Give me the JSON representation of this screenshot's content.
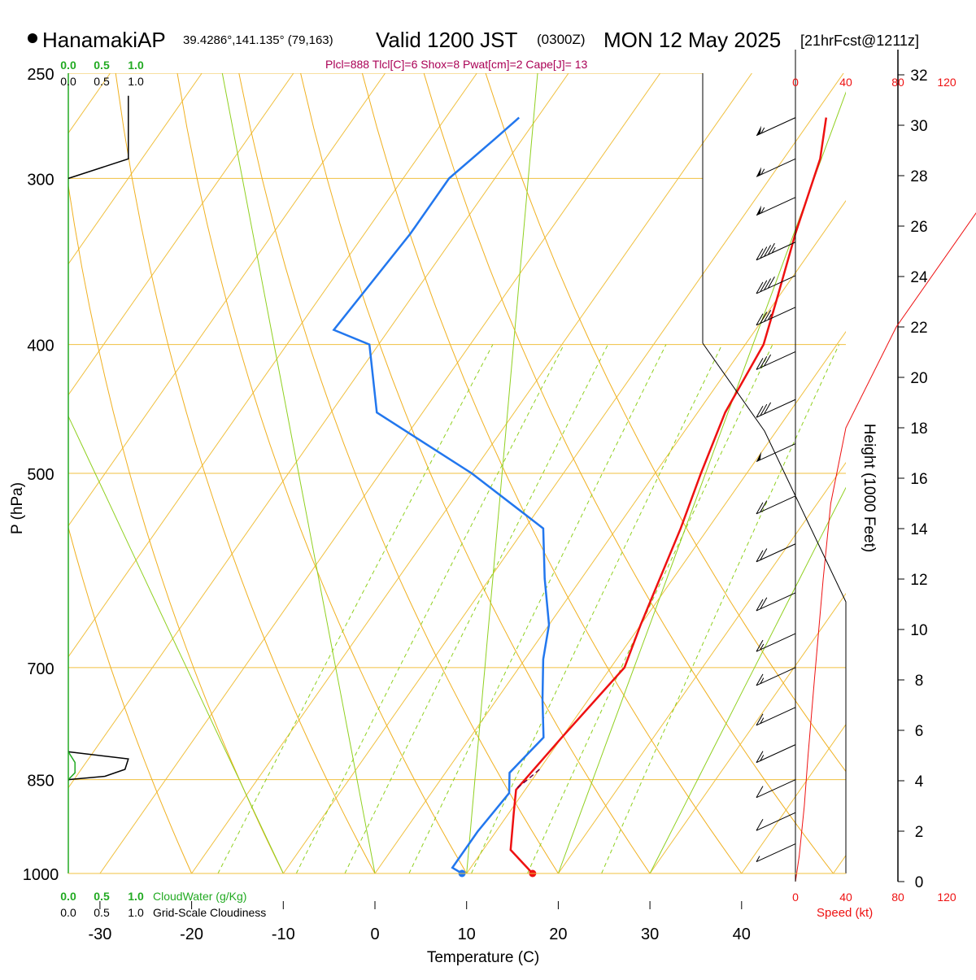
{
  "header": {
    "station": "HanamakiAP",
    "coords": "39.4286°,141.135° (79,163)",
    "valid": "Valid 1200 JST",
    "zulu": "(0300Z)",
    "date": "MON 12 May 2025",
    "forecast": "[21hrFcst@1211z]",
    "indices": "Plcl=888 Tlcl[C]=6 Shox=8 Pwat[cm]=2 Cape[J]= 13"
  },
  "colors": {
    "grid": "#f0c040",
    "dry_adiabat": "#f0b020",
    "moist_adiabat": "#90d020",
    "mixing_ratio": "#90d020",
    "temperature": "#ee1111",
    "dewpoint": "#2277ee",
    "cloud": "#22aa22",
    "speed": "#ee1111",
    "indices": "#aa0055"
  },
  "labels": {
    "x_axis": "Temperature (C)",
    "y_axis": "P (hPa)",
    "height_axis": "Height (1000 Feet)",
    "cloud_water": "CloudWater (g/Kg)",
    "cloudiness": "Grid-Scale Cloudiness",
    "speed": "Speed (kt)"
  },
  "scales": {
    "cloud_ticks": [
      "0.0",
      "0.5",
      "1.0"
    ],
    "cloudiness_ticks": [
      "0.0",
      "0.5",
      "1.0"
    ],
    "speed_ticks": [
      "0",
      "40",
      "80",
      "120"
    ]
  },
  "chart_data": {
    "type": "line",
    "title": "HanamakiAP Valid 1200 JST (0300Z) MON 12 May 2025",
    "xlabel": "Temperature (C)",
    "ylabel": "P (hPa)",
    "y_scale": "log",
    "ylim": [
      1000,
      250
    ],
    "xlim": [
      -33,
      36
    ],
    "x_ticks": [
      -30,
      -20,
      -10,
      0,
      10,
      20,
      30,
      40
    ],
    "p_levels": [
      250,
      300,
      400,
      500,
      700,
      850,
      1000
    ],
    "series": [
      {
        "name": "Temperature",
        "points": [
          [
            17.2,
            1000
          ],
          [
            13,
            960
          ],
          [
            10.5,
            900
          ],
          [
            9,
            865
          ],
          [
            10,
            790
          ],
          [
            11.5,
            700
          ],
          [
            10,
            650
          ],
          [
            7,
            550
          ],
          [
            5,
            500
          ],
          [
            3,
            450
          ],
          [
            2,
            400
          ],
          [
            0,
            370
          ],
          [
            -3,
            330
          ],
          [
            -6,
            290
          ],
          [
            -8.5,
            270
          ]
        ],
        "surface_marker": [
          17.2,
          1000
        ]
      },
      {
        "name": "Dewpoint",
        "points": [
          [
            9.5,
            1000
          ],
          [
            8,
            990
          ],
          [
            8,
            930
          ],
          [
            8.5,
            870
          ],
          [
            7,
            840
          ],
          [
            8,
            790
          ],
          [
            5,
            740
          ],
          [
            2,
            690
          ],
          [
            0,
            650
          ],
          [
            -4,
            600
          ],
          [
            -8,
            550
          ],
          [
            -20,
            500
          ],
          [
            -35,
            450
          ],
          [
            -41,
            400
          ],
          [
            -46,
            390
          ],
          [
            -45,
            330
          ],
          [
            -45,
            300
          ],
          [
            -43,
            280
          ],
          [
            -42,
            270
          ]
        ],
        "surface_marker": [
          9.5,
          1000
        ]
      },
      {
        "name": "Parcel",
        "points": [
          [
            10,
            835
          ],
          [
            9.5,
            850
          ],
          [
            9,
            862
          ]
        ]
      }
    ],
    "dry_adiabats": [
      -20,
      -10,
      0,
      10,
      20,
      30,
      40,
      50,
      60
    ],
    "moist_adiabats": [
      -10,
      0,
      10,
      20,
      30
    ],
    "mixing_ratios": [
      1,
      2,
      3,
      5,
      8,
      12,
      20
    ],
    "cloudiness_profile": [
      [
        0,
        810
      ],
      [
        0.9,
        820
      ],
      [
        0.85,
        835
      ],
      [
        0.55,
        845
      ],
      [
        0,
        850
      ]
    ],
    "cloud_water_profile": [
      [
        0,
        810
      ],
      [
        0.1,
        825
      ],
      [
        0.1,
        840
      ],
      [
        0,
        850
      ]
    ],
    "cloudiness_upper": [
      [
        0,
        300
      ],
      [
        0.9,
        290
      ],
      [
        0.9,
        260
      ]
    ],
    "height_scale": {
      "ticks": [
        0,
        2,
        4,
        6,
        8,
        10,
        12,
        14,
        16,
        18,
        20,
        22,
        24,
        26,
        28,
        30,
        32
      ],
      "speed_profile": [
        [
          0,
          0
        ],
        [
          3,
          1
        ],
        [
          7,
          3
        ],
        [
          10,
          5
        ],
        [
          15,
          8
        ],
        [
          22,
          12
        ],
        [
          28,
          15
        ],
        [
          40,
          18
        ],
        [
          80,
          22
        ],
        [
          150,
          27
        ],
        [
          200,
          30
        ]
      ]
    },
    "wind_barbs": [
      {
        "p": 270,
        "speed": 55
      },
      {
        "p": 290,
        "speed": 55
      },
      {
        "p": 310,
        "speed": 55
      },
      {
        "p": 335,
        "speed": 45
      },
      {
        "p": 355,
        "speed": 40
      },
      {
        "p": 375,
        "speed": 35
      },
      {
        "p": 405,
        "speed": 30
      },
      {
        "p": 440,
        "speed": 30
      },
      {
        "p": 475,
        "speed": 50
      },
      {
        "p": 520,
        "speed": 20
      },
      {
        "p": 565,
        "speed": 20
      },
      {
        "p": 615,
        "speed": 20
      },
      {
        "p": 660,
        "speed": 15
      },
      {
        "p": 700,
        "speed": 15
      },
      {
        "p": 750,
        "speed": 15
      },
      {
        "p": 800,
        "speed": 15
      },
      {
        "p": 850,
        "speed": 10
      },
      {
        "p": 900,
        "speed": 10
      },
      {
        "p": 950,
        "speed": 5
      }
    ]
  }
}
